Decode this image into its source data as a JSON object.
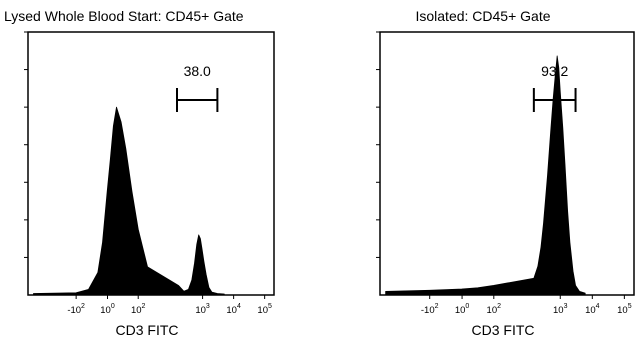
{
  "chart_data": [
    {
      "type": "area",
      "title": "Lysed Whole Blood Start: CD45+ Gate",
      "xlabel": "CD3 FITC",
      "ylabel": "",
      "x_scale": "biexponential",
      "x_ticks": [
        {
          "base": "-10",
          "exp": "2",
          "value": -100
        },
        {
          "base": "10",
          "exp": "0",
          "value": 1
        },
        {
          "base": "10",
          "exp": "2",
          "value": 100
        },
        {
          "base": "10",
          "exp": "3",
          "value": 1000
        },
        {
          "base": "10",
          "exp": "4",
          "value": 10000
        },
        {
          "base": "10",
          "exp": "5",
          "value": 100000
        }
      ],
      "gate": {
        "label": "38.0",
        "start": 150,
        "end": 3000
      },
      "series": [
        {
          "x": [
            -200,
            -100,
            -60,
            -30,
            -15,
            0,
            10,
            20,
            30,
            45,
            60,
            80,
            100,
            130,
            170,
            250,
            350,
            450,
            550,
            650,
            750,
            850,
            950,
            1100,
            1300,
            1600,
            2000,
            3000,
            5000
          ],
          "y": [
            0.8,
            1.2,
            3,
            12,
            28,
            55,
            72,
            90,
            100,
            92,
            78,
            55,
            35,
            15,
            5,
            2,
            3,
            8,
            17,
            27,
            32,
            30,
            25,
            18,
            11,
            4,
            1.5,
            0.8,
            0.5
          ]
        }
      ],
      "ylim": [
        0,
        140
      ]
    },
    {
      "type": "area",
      "title": "Isolated: CD45+ Gate",
      "xlabel": "CD3 FITC",
      "ylabel": "",
      "x_scale": "biexponential",
      "x_ticks": [
        {
          "base": "-10",
          "exp": "2",
          "value": -100
        },
        {
          "base": "10",
          "exp": "0",
          "value": 1
        },
        {
          "base": "10",
          "exp": "2",
          "value": 100
        },
        {
          "base": "10",
          "exp": "3",
          "value": 1000
        },
        {
          "base": "10",
          "exp": "4",
          "value": 10000
        },
        {
          "base": "10",
          "exp": "5",
          "value": 100000
        }
      ],
      "gate": {
        "label": "93.2",
        "start": 150,
        "end": 3000
      },
      "series": [
        {
          "x": [
            -200,
            -100,
            0,
            50,
            100,
            150,
            200,
            250,
            300,
            400,
            500,
            600,
            700,
            800,
            900,
            1000,
            1200,
            1400,
            1700,
            2000,
            2500,
            3000,
            4000,
            6000
          ],
          "y": [
            1.5,
            2,
            2.5,
            3,
            4,
            7,
            12,
            20,
            30,
            50,
            68,
            82,
            92,
            100,
            95,
            85,
            70,
            55,
            35,
            22,
            10,
            4,
            1.5,
            0.8
          ]
        }
      ],
      "ylim": [
        0,
        110
      ]
    }
  ]
}
